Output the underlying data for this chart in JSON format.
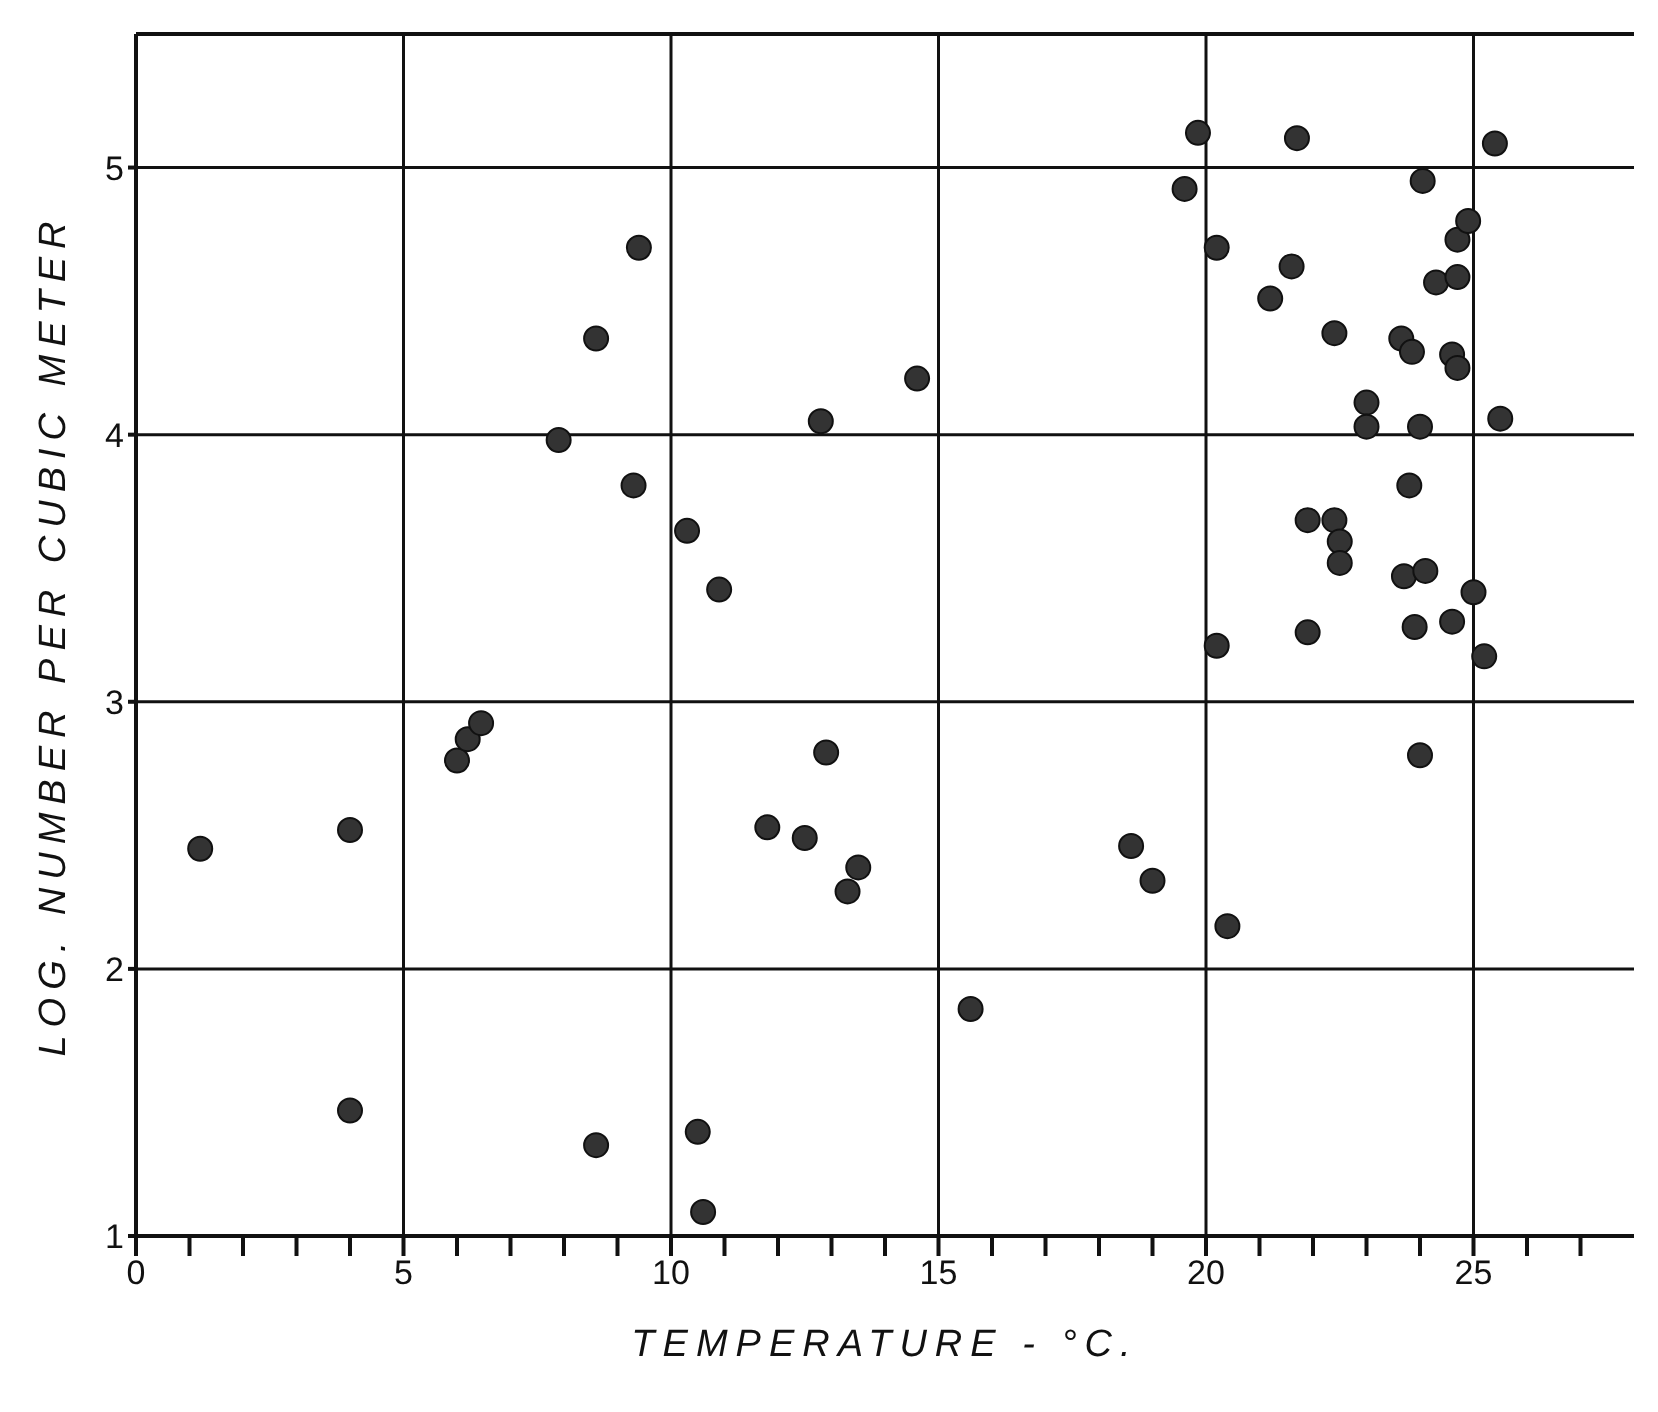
{
  "chart_data": {
    "type": "scatter",
    "xlabel": "TEMPERATURE - °C.",
    "ylabel": "LOG. NUMBER PER CUBIC METER",
    "xlim": [
      0,
      28
    ],
    "ylim": [
      1,
      5.5
    ],
    "xticks": [
      0,
      {
        "value": 1,
        "label": null
      },
      {
        "value": 2,
        "label": null
      },
      {
        "value": 3,
        "label": null
      },
      {
        "value": 4,
        "label": null
      },
      5,
      {
        "value": 6,
        "label": null
      },
      {
        "value": 7,
        "label": null
      },
      {
        "value": 8,
        "label": null
      },
      {
        "value": 9,
        "label": null
      },
      10,
      {
        "value": 11,
        "label": null
      },
      {
        "value": 12,
        "label": null
      },
      {
        "value": 13,
        "label": null
      },
      {
        "value": 14,
        "label": null
      },
      15,
      {
        "value": 16,
        "label": null
      },
      {
        "value": 17,
        "label": null
      },
      {
        "value": 18,
        "label": null
      },
      {
        "value": 19,
        "label": null
      },
      20,
      {
        "value": 21,
        "label": null
      },
      {
        "value": 22,
        "label": null
      },
      {
        "value": 23,
        "label": null
      },
      {
        "value": 24,
        "label": null
      },
      25,
      {
        "value": 26,
        "label": null
      },
      {
        "value": 27,
        "label": null
      }
    ],
    "yticks": [
      1,
      2,
      3,
      4,
      5
    ],
    "grid": true,
    "marker": "circle",
    "series": [
      {
        "color": "#333333",
        "x": [
          1.2,
          4.0,
          4.0,
          6.0,
          6.2,
          6.45,
          7.9,
          8.6,
          9.4,
          9.3,
          8.6,
          10.3,
          10.9,
          10.5,
          10.6,
          11.8,
          12.5,
          12.9,
          13.5,
          13.3,
          12.8,
          14.6,
          15.6,
          18.6,
          19.0,
          20.4,
          19.85,
          21.7,
          25.4,
          19.6,
          24.05,
          20.2,
          21.6,
          21.2,
          24.7,
          24.9,
          24.3,
          24.7,
          22.4,
          23.65,
          23.85,
          24.6,
          24.7,
          23.0,
          23.0,
          24.0,
          25.5,
          23.8,
          21.9,
          22.4,
          22.5,
          22.5,
          23.7,
          24.1,
          25.0,
          20.2,
          21.9,
          23.9,
          24.6,
          25.2,
          24.0
        ],
        "values": [
          2.45,
          2.52,
          1.47,
          2.78,
          2.86,
          2.92,
          3.98,
          4.36,
          4.7,
          3.81,
          1.34,
          3.64,
          3.42,
          1.39,
          1.09,
          2.53,
          2.49,
          2.81,
          2.38,
          2.29,
          4.05,
          4.21,
          1.85,
          2.46,
          2.33,
          2.16,
          5.13,
          5.11,
          5.09,
          4.92,
          4.95,
          4.7,
          4.63,
          4.51,
          4.73,
          4.8,
          4.57,
          4.59,
          4.38,
          4.36,
          4.31,
          4.3,
          4.25,
          4.12,
          4.03,
          4.03,
          4.06,
          3.81,
          3.68,
          3.68,
          3.6,
          3.52,
          3.47,
          3.49,
          3.41,
          3.21,
          3.26,
          3.28,
          3.3,
          3.17,
          2.8
        ]
      }
    ]
  }
}
